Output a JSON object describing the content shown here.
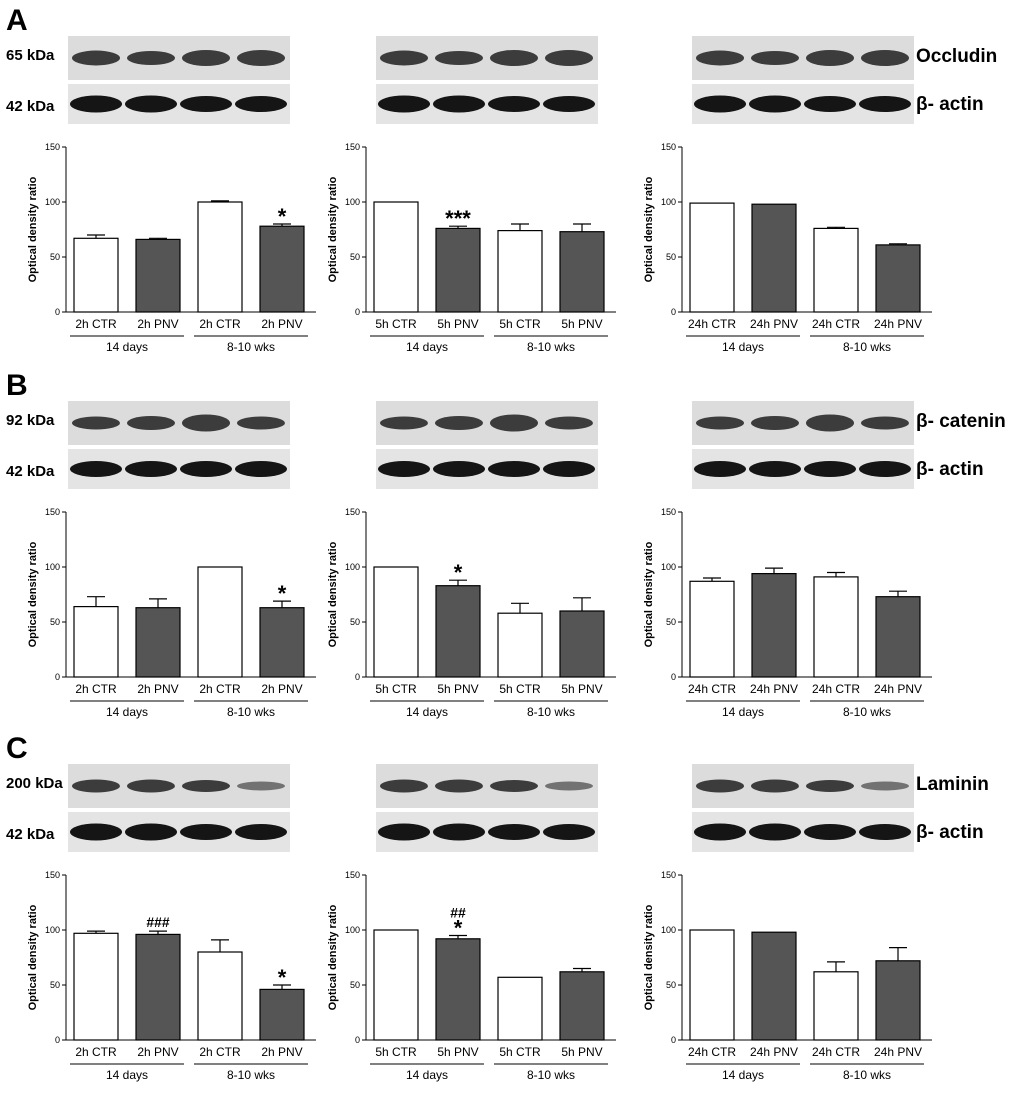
{
  "figure": {
    "panel_labels": [
      "A",
      "B",
      "C"
    ],
    "colors": {
      "ctr_bar": "#ffffff",
      "pnv_bar": "#555555",
      "axis": "#000000"
    }
  },
  "blots": [
    {
      "target_kda": "65 kDa",
      "ref_kda": "42 kDa",
      "target_name": "Occludin",
      "ref_name": "β- actin"
    },
    {
      "target_kda": "92 kDa",
      "ref_kda": "42 kDa",
      "target_name": "β- catenin",
      "ref_name": "β- actin"
    },
    {
      "target_kda": "200 kDa",
      "ref_kda": "42 kDa",
      "target_name": "Laminin",
      "ref_name": "β- actin"
    }
  ],
  "chart_data": [
    {
      "panel": "A",
      "type": "bar",
      "ylabel": "Optical density ratio",
      "ylim": [
        0,
        150
      ],
      "yticks": [
        0,
        50,
        100,
        150
      ],
      "categories": [
        "2h CTR",
        "2h PNV",
        "2h CTR",
        "2h PNV"
      ],
      "groups": [
        "14 days",
        "8-10 wks"
      ],
      "values": [
        67,
        66,
        100,
        78
      ],
      "errors": [
        3,
        1,
        1,
        2
      ],
      "annotations": [
        "",
        "",
        "",
        "*"
      ]
    },
    {
      "panel": "A",
      "type": "bar",
      "ylabel": "Optical density ratio",
      "ylim": [
        0,
        150
      ],
      "yticks": [
        0,
        50,
        100,
        150
      ],
      "categories": [
        "5h CTR",
        "5h PNV",
        "5h CTR",
        "5h PNV"
      ],
      "groups": [
        "14 days",
        "8-10 wks"
      ],
      "values": [
        100,
        76,
        74,
        73
      ],
      "errors": [
        0,
        2,
        6,
        7
      ],
      "annotations": [
        "",
        "***",
        "",
        ""
      ]
    },
    {
      "panel": "A",
      "type": "bar",
      "ylabel": "Optical density ratio",
      "ylim": [
        0,
        150
      ],
      "yticks": [
        0,
        50,
        100,
        150
      ],
      "categories": [
        "24h CTR",
        "24h PNV",
        "24h CTR",
        "24h PNV"
      ],
      "groups": [
        "14 days",
        "8-10 wks"
      ],
      "values": [
        99,
        98,
        76,
        61
      ],
      "errors": [
        0,
        0,
        1,
        1
      ],
      "annotations": [
        "",
        "",
        "",
        ""
      ]
    },
    {
      "panel": "B",
      "type": "bar",
      "ylabel": "Optical density ratio",
      "ylim": [
        0,
        150
      ],
      "yticks": [
        0,
        50,
        100,
        150
      ],
      "categories": [
        "2h CTR",
        "2h PNV",
        "2h CTR",
        "2h PNV"
      ],
      "groups": [
        "14 days",
        "8-10 wks"
      ],
      "values": [
        64,
        63,
        100,
        63
      ],
      "errors": [
        9,
        8,
        0,
        6
      ],
      "annotations": [
        "",
        "",
        "",
        "*"
      ]
    },
    {
      "panel": "B",
      "type": "bar",
      "ylabel": "Optical density ratio",
      "ylim": [
        0,
        150
      ],
      "yticks": [
        0,
        50,
        100,
        150
      ],
      "categories": [
        "5h CTR",
        "5h PNV",
        "5h CTR",
        "5h PNV"
      ],
      "groups": [
        "14 days",
        "8-10 wks"
      ],
      "values": [
        100,
        83,
        58,
        60
      ],
      "errors": [
        0,
        5,
        9,
        12
      ],
      "annotations": [
        "",
        "*",
        "",
        ""
      ]
    },
    {
      "panel": "B",
      "type": "bar",
      "ylabel": "Optical density ratio",
      "ylim": [
        0,
        150
      ],
      "yticks": [
        0,
        50,
        100,
        150
      ],
      "categories": [
        "24h CTR",
        "24h PNV",
        "24h CTR",
        "24h PNV"
      ],
      "groups": [
        "14 days",
        "8-10 wks"
      ],
      "values": [
        87,
        94,
        91,
        73
      ],
      "errors": [
        3,
        5,
        4,
        5
      ],
      "annotations": [
        "",
        "",
        "",
        ""
      ]
    },
    {
      "panel": "C",
      "type": "bar",
      "ylabel": "Optical density ratio",
      "ylim": [
        0,
        150
      ],
      "yticks": [
        0,
        50,
        100,
        150
      ],
      "categories": [
        "2h CTR",
        "2h PNV",
        "2h CTR",
        "2h PNV"
      ],
      "groups": [
        "14 days",
        "8-10 wks"
      ],
      "values": [
        97,
        96,
        80,
        46
      ],
      "errors": [
        2,
        3,
        11,
        4
      ],
      "annotations": [
        "",
        "###",
        "",
        "*"
      ]
    },
    {
      "panel": "C",
      "type": "bar",
      "ylabel": "Optical density ratio",
      "ylim": [
        0,
        150
      ],
      "yticks": [
        0,
        50,
        100,
        150
      ],
      "categories": [
        "5h CTR",
        "5h PNV",
        "5h CTR",
        "5h PNV"
      ],
      "groups": [
        "14 days",
        "8-10 wks"
      ],
      "values": [
        100,
        92,
        57,
        62
      ],
      "errors": [
        0,
        3,
        0,
        3
      ],
      "annotations": [
        "",
        "*",
        "",
        ""
      ],
      "annotations2": [
        "",
        "##",
        "",
        ""
      ]
    },
    {
      "panel": "C",
      "type": "bar",
      "ylabel": "Optical density ratio",
      "ylim": [
        0,
        150
      ],
      "yticks": [
        0,
        50,
        100,
        150
      ],
      "categories": [
        "24h CTR",
        "24h PNV",
        "24h CTR",
        "24h PNV"
      ],
      "groups": [
        "14 days",
        "8-10 wks"
      ],
      "values": [
        100,
        98,
        62,
        72
      ],
      "errors": [
        0,
        0,
        9,
        12
      ],
      "annotations": [
        "",
        "",
        "",
        ""
      ]
    }
  ]
}
